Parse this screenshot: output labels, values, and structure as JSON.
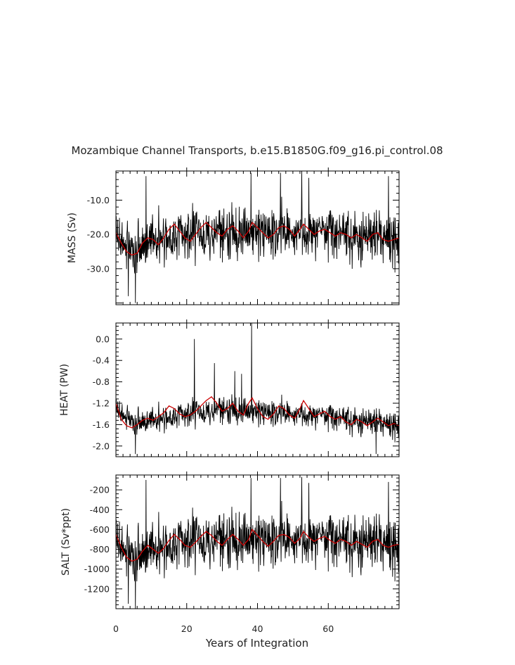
{
  "chart_data": {
    "type": "line",
    "title": "Mozambique Channel Transports, b.e15.B1850G.f09_g16.pi_control.08",
    "xlabel": "Years of Integration",
    "xlim": [
      0,
      80
    ],
    "xticks": [
      0,
      20,
      40,
      60
    ],
    "xtick_labels": [
      "0",
      "20",
      "40",
      "60"
    ],
    "series_style": {
      "raw": "#000000",
      "smoothed": "#cc0000"
    },
    "panels": [
      {
        "id": "mass",
        "ylabel": "MASS (Sv)",
        "ylim": [
          -40.5,
          -1.5
        ],
        "yticks": [
          -10.0,
          -20.0,
          -30.0
        ],
        "ytick_labels": [
          "-10.0",
          "-20.0",
          "-30.0"
        ],
        "smoothed": [
          [
            0,
            -19.5
          ],
          [
            1.5,
            -22.5
          ],
          [
            3,
            -25
          ],
          [
            4.5,
            -26
          ],
          [
            6,
            -25.5
          ],
          [
            7.5,
            -22.5
          ],
          [
            9,
            -21
          ],
          [
            10.5,
            -21.5
          ],
          [
            12,
            -23
          ],
          [
            13.5,
            -21
          ],
          [
            15,
            -18.5
          ],
          [
            16.5,
            -17
          ],
          [
            18,
            -19
          ],
          [
            19.5,
            -21
          ],
          [
            21,
            -22
          ],
          [
            22.5,
            -20
          ],
          [
            24,
            -18
          ],
          [
            25.5,
            -16.5
          ],
          [
            27,
            -18
          ],
          [
            28.5,
            -19.5
          ],
          [
            30,
            -20.5
          ],
          [
            31.5,
            -18.5
          ],
          [
            33,
            -17.5
          ],
          [
            34.5,
            -19
          ],
          [
            36,
            -21
          ],
          [
            37.5,
            -19
          ],
          [
            38.5,
            -16.5
          ],
          [
            40,
            -18
          ],
          [
            41.5,
            -19.5
          ],
          [
            43,
            -21
          ],
          [
            44.5,
            -20
          ],
          [
            46,
            -18
          ],
          [
            47.5,
            -17.5
          ],
          [
            49,
            -18.5
          ],
          [
            50.5,
            -20.5
          ],
          [
            52,
            -18.5
          ],
          [
            53,
            -17
          ],
          [
            54.5,
            -18.5
          ],
          [
            56,
            -20
          ],
          [
            57.5,
            -19
          ],
          [
            59,
            -18.5
          ],
          [
            60.5,
            -19.5
          ],
          [
            62,
            -20.5
          ],
          [
            63.5,
            -19.5
          ],
          [
            65,
            -20
          ],
          [
            66.5,
            -21
          ],
          [
            68,
            -20
          ],
          [
            69.5,
            -21
          ],
          [
            71,
            -22
          ],
          [
            72.5,
            -20
          ],
          [
            74,
            -19.5
          ],
          [
            75.5,
            -21.5
          ],
          [
            77,
            -22
          ],
          [
            78.5,
            -21.5
          ],
          [
            80,
            -21
          ]
        ],
        "anchors": [
          [
            0,
            -20
          ],
          [
            5,
            -26
          ],
          [
            10,
            -21
          ],
          [
            20,
            -20
          ],
          [
            30,
            -19
          ],
          [
            40,
            -19
          ],
          [
            50,
            -19.5
          ],
          [
            60,
            -19.5
          ],
          [
            70,
            -21
          ],
          [
            80,
            -21
          ]
        ],
        "noise_amp": 7.8,
        "spikes": [
          [
            8.5,
            -3
          ],
          [
            5.5,
            -40
          ],
          [
            38.2,
            -2
          ],
          [
            46.5,
            -2
          ],
          [
            52.5,
            -1.5
          ],
          [
            54.5,
            -3.5
          ],
          [
            77,
            -3
          ],
          [
            3.5,
            -38
          ]
        ]
      },
      {
        "id": "heat",
        "ylabel": "HEAT (PW)",
        "ylim": [
          -2.2,
          0.3
        ],
        "yticks": [
          0.0,
          -0.4,
          -0.8,
          -1.2,
          -1.6,
          -2.0
        ],
        "ytick_labels": [
          "0.0",
          "-0.4",
          "-0.8",
          "-1.2",
          "-1.6",
          "-2.0"
        ],
        "smoothed": [
          [
            0,
            -1.2
          ],
          [
            1.5,
            -1.5
          ],
          [
            3,
            -1.62
          ],
          [
            4.5,
            -1.66
          ],
          [
            6,
            -1.6
          ],
          [
            7.5,
            -1.52
          ],
          [
            9,
            -1.48
          ],
          [
            10.5,
            -1.52
          ],
          [
            12,
            -1.45
          ],
          [
            13.5,
            -1.38
          ],
          [
            15,
            -1.25
          ],
          [
            16.5,
            -1.3
          ],
          [
            18,
            -1.4
          ],
          [
            19.5,
            -1.45
          ],
          [
            21,
            -1.42
          ],
          [
            22.5,
            -1.35
          ],
          [
            24,
            -1.25
          ],
          [
            25.5,
            -1.15
          ],
          [
            27,
            -1.08
          ],
          [
            28.5,
            -1.2
          ],
          [
            30,
            -1.35
          ],
          [
            31.5,
            -1.3
          ],
          [
            33,
            -1.2
          ],
          [
            34.5,
            -1.35
          ],
          [
            36,
            -1.42
          ],
          [
            37.5,
            -1.2
          ],
          [
            38.5,
            -1.1
          ],
          [
            40,
            -1.3
          ],
          [
            41.5,
            -1.45
          ],
          [
            43,
            -1.5
          ],
          [
            44.5,
            -1.4
          ],
          [
            46,
            -1.25
          ],
          [
            47.5,
            -1.3
          ],
          [
            49,
            -1.42
          ],
          [
            50.5,
            -1.48
          ],
          [
            52,
            -1.3
          ],
          [
            53,
            -1.15
          ],
          [
            54.5,
            -1.3
          ],
          [
            56,
            -1.45
          ],
          [
            57.5,
            -1.4
          ],
          [
            59,
            -1.35
          ],
          [
            60.5,
            -1.45
          ],
          [
            62,
            -1.5
          ],
          [
            63.5,
            -1.45
          ],
          [
            65,
            -1.55
          ],
          [
            66.5,
            -1.6
          ],
          [
            68,
            -1.5
          ],
          [
            69.5,
            -1.55
          ],
          [
            71,
            -1.62
          ],
          [
            72.5,
            -1.55
          ],
          [
            74,
            -1.48
          ],
          [
            75.5,
            -1.55
          ],
          [
            77,
            -1.62
          ],
          [
            78.5,
            -1.58
          ],
          [
            80,
            -1.62
          ]
        ],
        "anchors": [
          [
            0,
            -1.3
          ],
          [
            5,
            -1.6
          ],
          [
            10,
            -1.5
          ],
          [
            20,
            -1.4
          ],
          [
            30,
            -1.3
          ],
          [
            40,
            -1.35
          ],
          [
            50,
            -1.4
          ],
          [
            60,
            -1.45
          ],
          [
            70,
            -1.55
          ],
          [
            80,
            -1.6
          ]
        ],
        "noise_amp": 0.26,
        "spikes": [
          [
            22.2,
            0.0
          ],
          [
            38.3,
            0.3
          ],
          [
            27.8,
            -0.45
          ],
          [
            35.5,
            -0.65
          ],
          [
            33.6,
            -0.6
          ],
          [
            73.5,
            -2.15
          ],
          [
            5.5,
            -2.15
          ]
        ]
      },
      {
        "id": "salt",
        "ylabel": "SALT (Sv*ppt)",
        "ylim": [
          -1400,
          -50
        ],
        "yticks": [
          -200,
          -400,
          -600,
          -800,
          -1000,
          -1200
        ],
        "ytick_labels": [
          "-200",
          "-400",
          "-600",
          "-800",
          "-1000",
          "-1200"
        ],
        "smoothed": [
          [
            0,
            -650
          ],
          [
            1.5,
            -780
          ],
          [
            3,
            -880
          ],
          [
            4.5,
            -920
          ],
          [
            6,
            -900
          ],
          [
            7.5,
            -820
          ],
          [
            9,
            -760
          ],
          [
            10.5,
            -800
          ],
          [
            12,
            -840
          ],
          [
            13.5,
            -790
          ],
          [
            15,
            -710
          ],
          [
            16.5,
            -650
          ],
          [
            18,
            -700
          ],
          [
            19.5,
            -760
          ],
          [
            21,
            -780
          ],
          [
            22.5,
            -730
          ],
          [
            24,
            -670
          ],
          [
            25.5,
            -620
          ],
          [
            27,
            -660
          ],
          [
            28.5,
            -720
          ],
          [
            30,
            -760
          ],
          [
            31.5,
            -700
          ],
          [
            33,
            -650
          ],
          [
            34.5,
            -700
          ],
          [
            36,
            -760
          ],
          [
            37.5,
            -700
          ],
          [
            38.5,
            -600
          ],
          [
            40,
            -660
          ],
          [
            41.5,
            -720
          ],
          [
            43,
            -770
          ],
          [
            44.5,
            -720
          ],
          [
            46,
            -660
          ],
          [
            47.5,
            -650
          ],
          [
            49,
            -680
          ],
          [
            50.5,
            -740
          ],
          [
            52,
            -690
          ],
          [
            53,
            -620
          ],
          [
            54.5,
            -680
          ],
          [
            56,
            -720
          ],
          [
            57.5,
            -690
          ],
          [
            59,
            -670
          ],
          [
            60.5,
            -710
          ],
          [
            62,
            -740
          ],
          [
            63.5,
            -700
          ],
          [
            65,
            -720
          ],
          [
            66.5,
            -760
          ],
          [
            68,
            -720
          ],
          [
            69.5,
            -750
          ],
          [
            71,
            -780
          ],
          [
            72.5,
            -720
          ],
          [
            74,
            -700
          ],
          [
            75.5,
            -760
          ],
          [
            77,
            -780
          ],
          [
            78.5,
            -760
          ],
          [
            80,
            -750
          ]
        ],
        "anchors": [
          [
            0,
            -700
          ],
          [
            5,
            -920
          ],
          [
            10,
            -780
          ],
          [
            20,
            -720
          ],
          [
            30,
            -680
          ],
          [
            40,
            -690
          ],
          [
            50,
            -700
          ],
          [
            60,
            -700
          ],
          [
            70,
            -740
          ],
          [
            80,
            -750
          ]
        ],
        "noise_amp": 290,
        "spikes": [
          [
            8.5,
            -100
          ],
          [
            5.5,
            -1400
          ],
          [
            38.2,
            -80
          ],
          [
            46.5,
            -80
          ],
          [
            52.5,
            -70
          ],
          [
            54.5,
            -130
          ],
          [
            77,
            -120
          ],
          [
            3.5,
            -1350
          ]
        ]
      }
    ]
  }
}
